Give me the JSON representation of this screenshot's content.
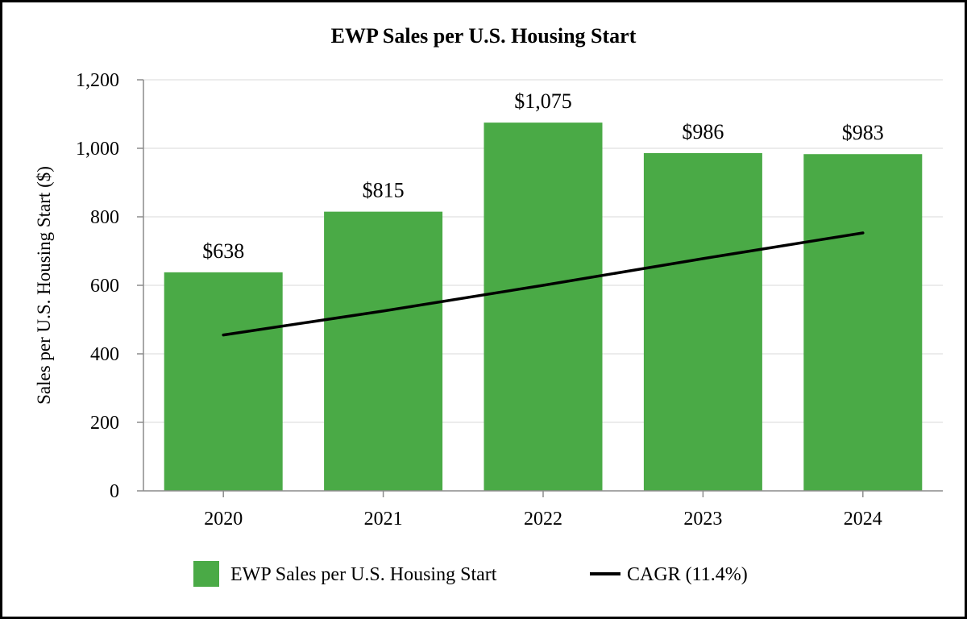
{
  "chart_data": {
    "type": "bar",
    "title": "EWP Sales per U.S. Housing Start",
    "xlabel": "",
    "ylabel": "Sales per U.S. Housing Start ($)",
    "categories": [
      "2020",
      "2021",
      "2022",
      "2023",
      "2024"
    ],
    "series": [
      {
        "name": "EWP Sales per U.S. Housing Start",
        "type": "bar",
        "color": "#4aaa46",
        "values": [
          638,
          815,
          1075,
          986,
          983
        ],
        "data_labels": [
          "$638",
          "$815",
          "$1,075",
          "$986",
          "$983"
        ]
      },
      {
        "name": "CAGR (11.4%)",
        "type": "line",
        "color": "#000000",
        "values": [
          455,
          525,
          600,
          678,
          753
        ]
      }
    ],
    "ylim": [
      0,
      1200
    ],
    "yticks": [
      0,
      200,
      400,
      600,
      800,
      1000,
      1200
    ],
    "ytick_labels": [
      "0",
      "200",
      "400",
      "600",
      "800",
      "1,000",
      "1,200"
    ],
    "grid": true,
    "legend_position": "bottom"
  }
}
